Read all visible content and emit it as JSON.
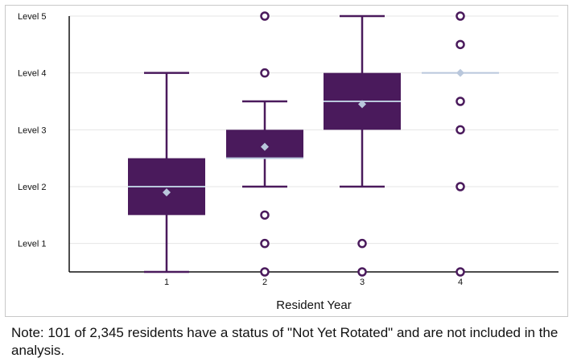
{
  "chart_data": {
    "type": "box",
    "xlabel": "Resident Year",
    "ylabel": "",
    "y_tick_labels": [
      "Level 1",
      "Level 2",
      "Level 3",
      "Level 4",
      "Level 5"
    ],
    "y_tick_values": [
      1,
      2,
      3,
      4,
      5
    ],
    "ylim": [
      0.5,
      5
    ],
    "categories": [
      "1",
      "2",
      "3",
      "4"
    ],
    "grid": true,
    "box_color": "#4a1a5c",
    "median_color": "#b9c7dc",
    "mean_marker_color": "#b9c7dc",
    "boxes": [
      {
        "category": "1",
        "whisker_low": 0.5,
        "q1": 1.5,
        "median": 2.0,
        "q3": 2.5,
        "whisker_high": 4.0,
        "mean": 1.9,
        "outliers": []
      },
      {
        "category": "2",
        "whisker_low": 2.0,
        "q1": 2.5,
        "median": 2.5,
        "q3": 3.0,
        "whisker_high": 3.5,
        "mean": 2.7,
        "outliers": [
          5.0,
          4.0,
          1.5,
          1.0,
          0.5
        ]
      },
      {
        "category": "3",
        "whisker_low": 2.0,
        "q1": 3.0,
        "median": 3.5,
        "q3": 4.0,
        "whisker_high": 5.0,
        "mean": 3.45,
        "outliers": [
          1.0,
          0.5
        ]
      },
      {
        "category": "4",
        "whisker_low": 4.0,
        "q1": 4.0,
        "median": 4.0,
        "q3": 4.0,
        "whisker_high": 4.0,
        "mean": 4.0,
        "outliers": [
          5.0,
          4.5,
          3.5,
          3.0,
          2.0,
          0.5
        ]
      }
    ]
  },
  "note": "Note: 101 of 2,345 residents have a status of \"Not Yet Rotated\" and are not included in the analysis."
}
